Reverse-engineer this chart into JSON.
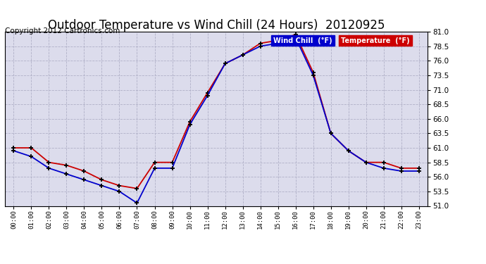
{
  "title": "Outdoor Temperature vs Wind Chill (24 Hours)  20120925",
  "copyright": "Copyright 2012 Cartronics.com",
  "hours": [
    "00:00",
    "01:00",
    "02:00",
    "03:00",
    "04:00",
    "05:00",
    "06:00",
    "07:00",
    "08:00",
    "09:00",
    "10:00",
    "11:00",
    "12:00",
    "13:00",
    "14:00",
    "15:00",
    "16:00",
    "17:00",
    "18:00",
    "19:00",
    "20:00",
    "21:00",
    "22:00",
    "23:00"
  ],
  "temperature": [
    61.0,
    61.0,
    58.5,
    58.0,
    57.0,
    55.5,
    54.5,
    54.0,
    58.5,
    58.5,
    65.5,
    70.5,
    75.5,
    77.0,
    79.0,
    79.5,
    80.5,
    74.0,
    63.5,
    60.5,
    58.5,
    58.5,
    57.5,
    57.5
  ],
  "wind_chill": [
    60.5,
    59.5,
    57.5,
    56.5,
    55.5,
    54.5,
    53.5,
    51.5,
    57.5,
    57.5,
    65.0,
    70.0,
    75.5,
    77.0,
    78.5,
    79.0,
    80.0,
    73.5,
    63.5,
    60.5,
    58.5,
    57.5,
    57.0,
    57.0
  ],
  "temp_color": "#cc0000",
  "wind_color": "#0000cc",
  "ylim": [
    51.0,
    81.0
  ],
  "yticks": [
    51.0,
    53.5,
    56.0,
    58.5,
    61.0,
    63.5,
    66.0,
    68.5,
    71.0,
    73.5,
    76.0,
    78.5,
    81.0
  ],
  "background_color": "#ffffff",
  "plot_bg_color": "#dcdcec",
  "grid_color": "#b0b0c8",
  "title_fontsize": 12,
  "copyright_fontsize": 7.5
}
